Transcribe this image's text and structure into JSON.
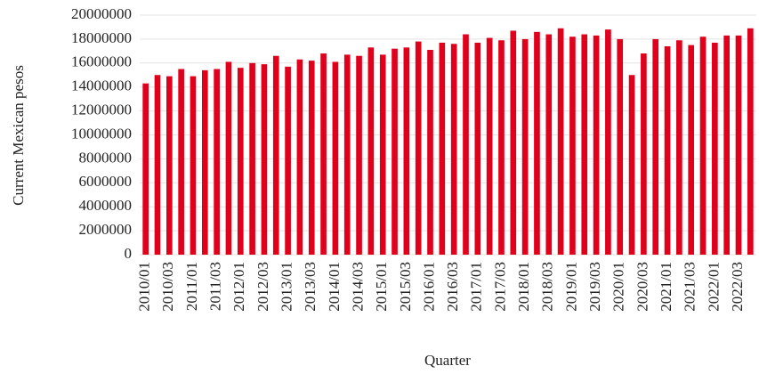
{
  "chart_data": {
    "type": "bar",
    "y_label": "Current Mexican pesos",
    "x_label": "Quarter",
    "categories": [
      "2010/01",
      null,
      "2010/03",
      null,
      "2011/01",
      null,
      "2011/03",
      null,
      "2012/01",
      null,
      "2012/03",
      null,
      "2013/01",
      null,
      "2013/03",
      null,
      "2014/01",
      null,
      "2014/03",
      null,
      "2015/01",
      null,
      "2015/03",
      null,
      "2016/01",
      null,
      "2016/03",
      null,
      "2017/01",
      null,
      "2017/03",
      null,
      "2018/01",
      null,
      "2018/03",
      null,
      "2019/01",
      null,
      "2019/03",
      null,
      "2020/01",
      null,
      "2020/03",
      null,
      "2021/01",
      null,
      "2021/03",
      null,
      "2022/01",
      null,
      "2022/03",
      null
    ],
    "values": [
      14300000,
      15000000,
      14900000,
      15500000,
      14900000,
      15400000,
      15500000,
      16100000,
      15600000,
      16000000,
      15900000,
      16600000,
      15700000,
      16300000,
      16200000,
      16800000,
      16100000,
      16700000,
      16600000,
      17300000,
      16700000,
      17200000,
      17300000,
      17800000,
      17100000,
      17700000,
      17600000,
      18400000,
      17700000,
      18100000,
      17900000,
      18700000,
      18000000,
      18600000,
      18400000,
      18900000,
      18200000,
      18400000,
      18300000,
      18800000,
      18000000,
      15000000,
      16800000,
      18000000,
      17400000,
      17900000,
      17500000,
      18200000,
      17700000,
      18300000,
      18300000,
      18900000
    ],
    "color": "#e0001b",
    "ylim": [
      0,
      20000000
    ],
    "yticks": [
      0,
      2000000,
      4000000,
      6000000,
      8000000,
      10000000,
      12000000,
      14000000,
      16000000,
      18000000,
      20000000
    ],
    "grid": true
  }
}
